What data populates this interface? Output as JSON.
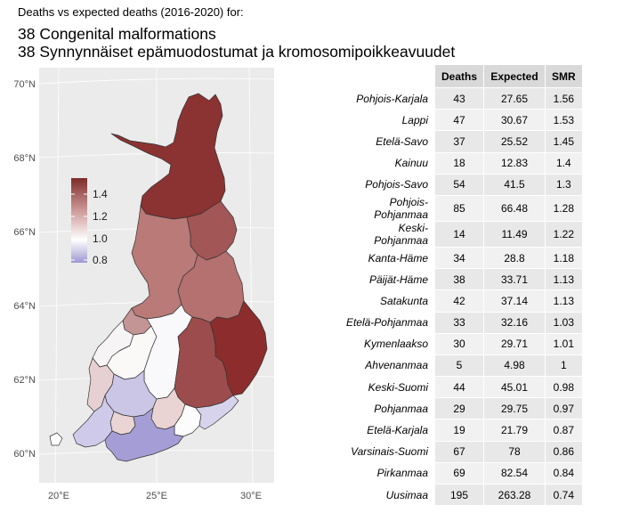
{
  "titles": {
    "line1": "Deaths vs expected deaths (2016-2020) for:",
    "line2": "38 Congenital malformations",
    "line3": "38 Synnynnäiset epämuodostumat ja kromosomipoikkeavuudet"
  },
  "map": {
    "lat_labels": [
      "70°N",
      "68°N",
      "66°N",
      "64°N",
      "62°N",
      "60°N"
    ],
    "lon_labels": [
      "20°E",
      "25°E",
      "30°E"
    ],
    "background_color": "#ebebeb",
    "legend": {
      "labels": [
        "1.4",
        "1.2",
        "1.0",
        "0.8"
      ],
      "gradient": [
        "#7f2b2b",
        "#c99292",
        "#ffffff",
        "#9e97d1"
      ]
    },
    "region_fills": {
      "lappi": "#8b3232",
      "pohjois_pohjanmaa": "#b97a78",
      "kainuu": "#a35656",
      "keski_pohjanmaa": "#c49595",
      "pohjanmaa": "#f7f4f6",
      "etela_pohjanmaa": "#fbf8f8",
      "keski_suomi": "#f9f9fc",
      "pohjois_savo": "#b4716f",
      "pohjois_karjala": "#8c2c2c",
      "etela_savo": "#9c4c4c",
      "satakunta": "#e6d0d1",
      "pirkanmaa": "#cbc6e6",
      "kanta_hame": "#ead4d4",
      "paijat_hame": "#ead3d3",
      "kymenlaakso": "#fdfcfc",
      "etela_karjala": "#d7d3ec",
      "varsinais_suomi": "#cfcaea",
      "uusimaa": "#a59ed6",
      "ahvenanmaa": "#ffffff"
    }
  },
  "table": {
    "headers": [
      "Deaths",
      "Expected",
      "SMR"
    ],
    "rows": [
      {
        "region": "Pohjois-Karjala",
        "deaths": "43",
        "expected": "27.65",
        "smr": "1.56"
      },
      {
        "region": "Lappi",
        "deaths": "47",
        "expected": "30.67",
        "smr": "1.53"
      },
      {
        "region": "Etelä-Savo",
        "deaths": "37",
        "expected": "25.52",
        "smr": "1.45"
      },
      {
        "region": "Kainuu",
        "deaths": "18",
        "expected": "12.83",
        "smr": "1.4"
      },
      {
        "region": "Pohjois-Savo",
        "deaths": "54",
        "expected": "41.5",
        "smr": "1.3"
      },
      {
        "region": "Pohjois-Pohjanmaa",
        "deaths": "85",
        "expected": "66.48",
        "smr": "1.28"
      },
      {
        "region": "Keski-Pohjanmaa",
        "deaths": "14",
        "expected": "11.49",
        "smr": "1.22"
      },
      {
        "region": "Kanta-Häme",
        "deaths": "34",
        "expected": "28.8",
        "smr": "1.18"
      },
      {
        "region": "Päijät-Häme",
        "deaths": "38",
        "expected": "33.71",
        "smr": "1.13"
      },
      {
        "region": "Satakunta",
        "deaths": "42",
        "expected": "37.14",
        "smr": "1.13"
      },
      {
        "region": "Etelä-Pohjanmaa",
        "deaths": "33",
        "expected": "32.16",
        "smr": "1.03"
      },
      {
        "region": "Kymenlaakso",
        "deaths": "30",
        "expected": "29.71",
        "smr": "1.01"
      },
      {
        "region": "Ahvenanmaa",
        "deaths": "5",
        "expected": "4.98",
        "smr": "1"
      },
      {
        "region": "Keski-Suomi",
        "deaths": "44",
        "expected": "45.01",
        "smr": "0.98"
      },
      {
        "region": "Pohjanmaa",
        "deaths": "29",
        "expected": "29.75",
        "smr": "0.97"
      },
      {
        "region": "Etelä-Karjala",
        "deaths": "19",
        "expected": "21.79",
        "smr": "0.87"
      },
      {
        "region": "Varsinais-Suomi",
        "deaths": "67",
        "expected": "78",
        "smr": "0.86"
      },
      {
        "region": "Pirkanmaa",
        "deaths": "69",
        "expected": "82.54",
        "smr": "0.84"
      },
      {
        "region": "Uusimaa",
        "deaths": "195",
        "expected": "263.28",
        "smr": "0.74"
      }
    ]
  }
}
